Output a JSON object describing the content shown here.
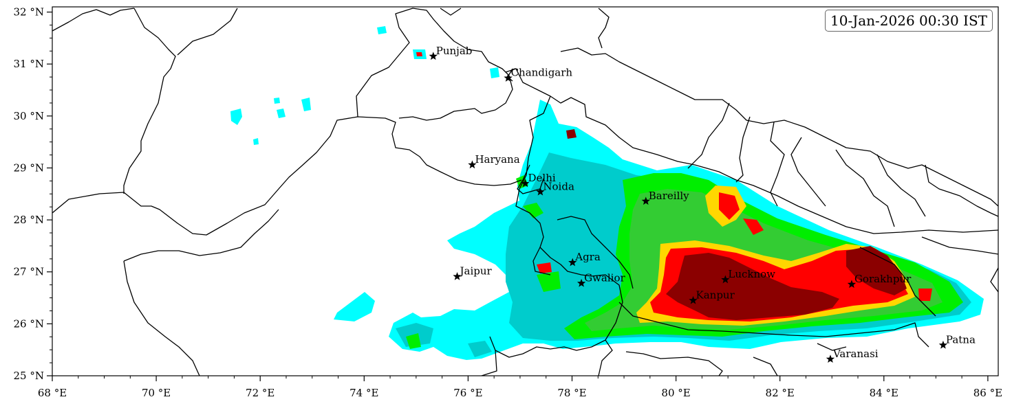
{
  "timestamp": "10-Jan-2026 00:30 IST",
  "map": {
    "lon_range": [
      68,
      86.2
    ],
    "lat_range": [
      25,
      32.1
    ],
    "lon_ticks": [
      {
        "value": 68,
        "label": "68 °E"
      },
      {
        "value": 70,
        "label": "70 °E"
      },
      {
        "value": 72,
        "label": "72 °E"
      },
      {
        "value": 74,
        "label": "74 °E"
      },
      {
        "value": 76,
        "label": "76 °E"
      },
      {
        "value": 78,
        "label": "78 °E"
      },
      {
        "value": 80,
        "label": "80 °E"
      },
      {
        "value": 82,
        "label": "82 °E"
      },
      {
        "value": 84,
        "label": "84 °E"
      },
      {
        "value": 86,
        "label": "86 °E"
      }
    ],
    "lat_ticks": [
      {
        "value": 25,
        "label": "25 °N"
      },
      {
        "value": 26,
        "label": "26 °N"
      },
      {
        "value": 27,
        "label": "27 °N"
      },
      {
        "value": 28,
        "label": "28 °N"
      },
      {
        "value": 29,
        "label": "29 °N"
      },
      {
        "value": 30,
        "label": "30 °N"
      },
      {
        "value": 31,
        "label": "31 °N"
      },
      {
        "value": 32,
        "label": "32 °N"
      }
    ],
    "colors": {
      "level1": "#00ffff",
      "level2": "#00cccc",
      "level3": "#00ee00",
      "level4": "#33cc33",
      "level5": "#ffd700",
      "level6": "#ff0000",
      "level7": "#8b0000"
    },
    "cities": [
      {
        "name": "Punjab",
        "lon": 75.33,
        "lat": 31.15
      },
      {
        "name": "Chandigarh",
        "lon": 76.77,
        "lat": 30.73
      },
      {
        "name": "Haryana",
        "lon": 76.08,
        "lat": 29.06
      },
      {
        "name": "Delhi",
        "lon": 77.1,
        "lat": 28.7
      },
      {
        "name": "Noida",
        "lon": 77.39,
        "lat": 28.54
      },
      {
        "name": "Bareilly",
        "lon": 79.42,
        "lat": 28.36
      },
      {
        "name": "Agra",
        "lon": 78.01,
        "lat": 27.18
      },
      {
        "name": "Jaipur",
        "lon": 75.79,
        "lat": 26.91
      },
      {
        "name": "Gwalior",
        "lon": 78.18,
        "lat": 26.78
      },
      {
        "name": "Lucknow",
        "lon": 80.95,
        "lat": 26.85
      },
      {
        "name": "Kanpur",
        "lon": 80.33,
        "lat": 26.45
      },
      {
        "name": "Gorakhpur",
        "lon": 83.38,
        "lat": 26.76
      },
      {
        "name": "Varanasi",
        "lon": 82.97,
        "lat": 25.32
      },
      {
        "name": "Patna",
        "lon": 85.14,
        "lat": 25.59
      }
    ]
  }
}
